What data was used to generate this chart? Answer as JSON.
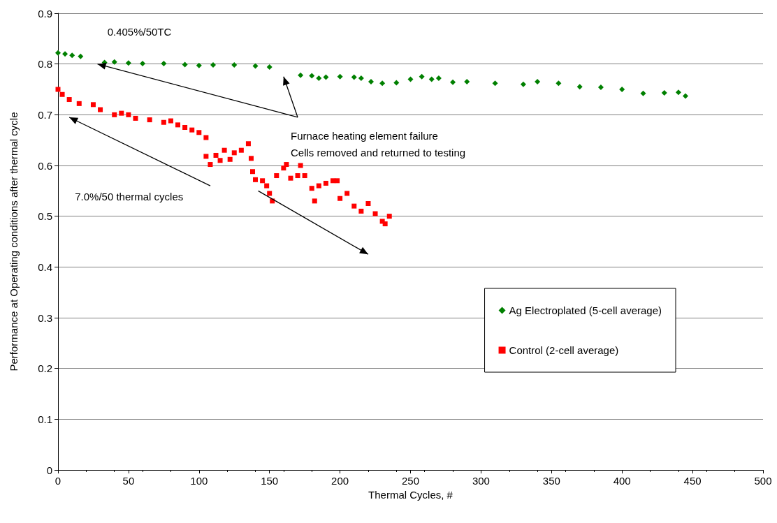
{
  "chart_data": {
    "type": "scatter",
    "xlabel": "Thermal Cycles, #",
    "ylabel": "Performance at Operating conditions after thermal cycle",
    "xlim": [
      0,
      500
    ],
    "xticks": [
      0,
      50,
      100,
      150,
      200,
      250,
      300,
      350,
      400,
      450,
      500
    ],
    "ylim": [
      0,
      0.9
    ],
    "yticks": [
      0,
      0.1,
      0.2,
      0.3,
      0.4,
      0.5,
      0.6,
      0.7,
      0.8,
      0.9
    ],
    "grid": "y",
    "legend": "right",
    "annotations": [
      "0.405%/50TC",
      "Furnace heating element failure\nCells removed and returned to testing",
      "7.0%/50 thermal cycles"
    ],
    "series": [
      {
        "name": "Ag Electroplated (5-cell average)",
        "color": "#008000",
        "marker": "diamond",
        "x": [
          0,
          5,
          10,
          16,
          33,
          40,
          50,
          60,
          75,
          90,
          100,
          110,
          125,
          140,
          150,
          172,
          180,
          185,
          190,
          200,
          210,
          215,
          222,
          230,
          240,
          250,
          258,
          265,
          270,
          280,
          290,
          310,
          330,
          340,
          355,
          370,
          385,
          400,
          415,
          430,
          440,
          445
        ],
        "values": [
          0.822,
          0.82,
          0.817,
          0.815,
          0.803,
          0.804,
          0.802,
          0.801,
          0.801,
          0.799,
          0.797,
          0.798,
          0.798,
          0.796,
          0.794,
          0.778,
          0.777,
          0.772,
          0.774,
          0.775,
          0.774,
          0.772,
          0.765,
          0.762,
          0.763,
          0.77,
          0.775,
          0.77,
          0.772,
          0.764,
          0.765,
          0.762,
          0.76,
          0.765,
          0.762,
          0.755,
          0.754,
          0.75,
          0.742,
          0.743,
          0.744,
          0.737
        ]
      },
      {
        "name": "Control (2-cell average)",
        "color": "#ff0000",
        "marker": "square",
        "x": [
          0,
          3,
          8,
          15,
          25,
          30,
          40,
          45,
          50,
          55,
          65,
          75,
          80,
          85,
          90,
          95,
          100,
          105,
          105,
          108,
          112,
          115,
          118,
          122,
          125,
          130,
          135,
          137,
          138,
          140,
          145,
          148,
          150,
          152,
          155,
          160,
          162,
          165,
          170,
          172,
          175,
          180,
          182,
          185,
          190,
          195,
          198,
          200,
          205,
          210,
          215,
          220,
          225,
          230,
          232,
          235
        ],
        "values": [
          0.75,
          0.74,
          0.73,
          0.722,
          0.72,
          0.71,
          0.7,
          0.703,
          0.7,
          0.693,
          0.69,
          0.685,
          0.688,
          0.68,
          0.675,
          0.67,
          0.665,
          0.655,
          0.618,
          0.602,
          0.62,
          0.61,
          0.63,
          0.612,
          0.625,
          0.63,
          0.643,
          0.614,
          0.588,
          0.572,
          0.57,
          0.56,
          0.545,
          0.53,
          0.58,
          0.595,
          0.602,
          0.575,
          0.58,
          0.6,
          0.58,
          0.555,
          0.53,
          0.56,
          0.565,
          0.57,
          0.57,
          0.535,
          0.545,
          0.52,
          0.51,
          0.525,
          0.505,
          0.49,
          0.485,
          0.5
        ]
      }
    ]
  }
}
